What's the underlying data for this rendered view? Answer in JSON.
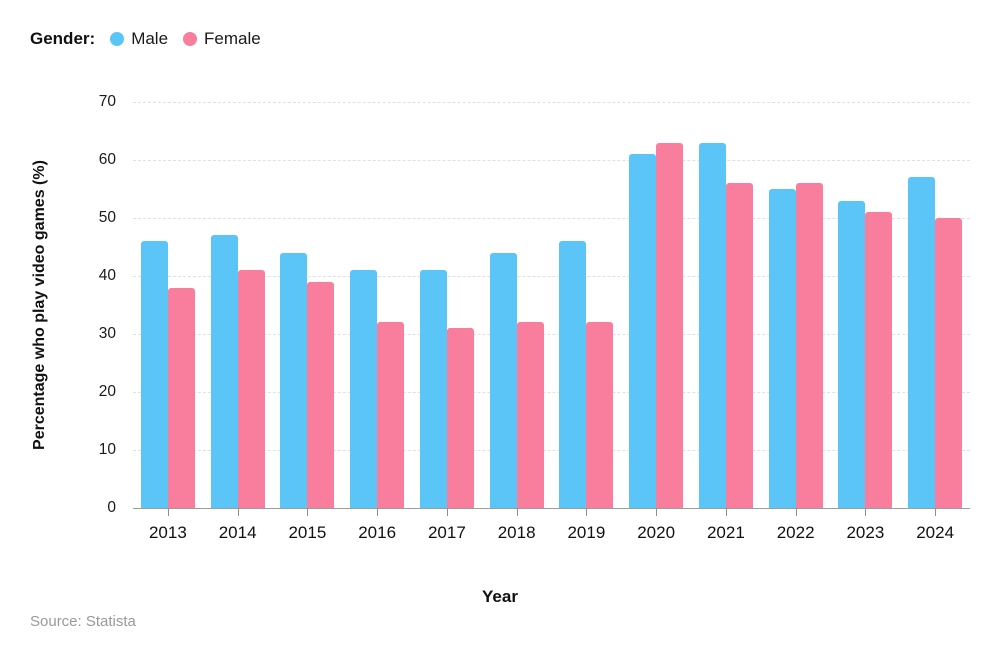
{
  "legend": {
    "title": "Gender:"
  },
  "chart_data": {
    "type": "bar",
    "title": "",
    "xlabel": "Year",
    "ylabel": "Percentage who play video games (%)",
    "categories": [
      "2013",
      "2014",
      "2015",
      "2016",
      "2017",
      "2018",
      "2019",
      "2020",
      "2021",
      "2022",
      "2023",
      "2024"
    ],
    "series": [
      {
        "name": "Male",
        "color": "#5CC5F7",
        "values": [
          46,
          47,
          44,
          41,
          41,
          44,
          46,
          61,
          63,
          55,
          53,
          57
        ]
      },
      {
        "name": "Female",
        "color": "#F97E9D",
        "values": [
          38,
          41,
          39,
          32,
          31,
          32,
          32,
          63,
          56,
          56,
          51,
          50
        ]
      }
    ],
    "ylim": [
      0,
      70
    ],
    "ytick_step": 10,
    "grid": "horizontal-dashed",
    "gridline_color": "#e0e0e0",
    "axis_line_color": "#9c9c9c",
    "legend_position": "top-left"
  },
  "source": "Source: Statista"
}
